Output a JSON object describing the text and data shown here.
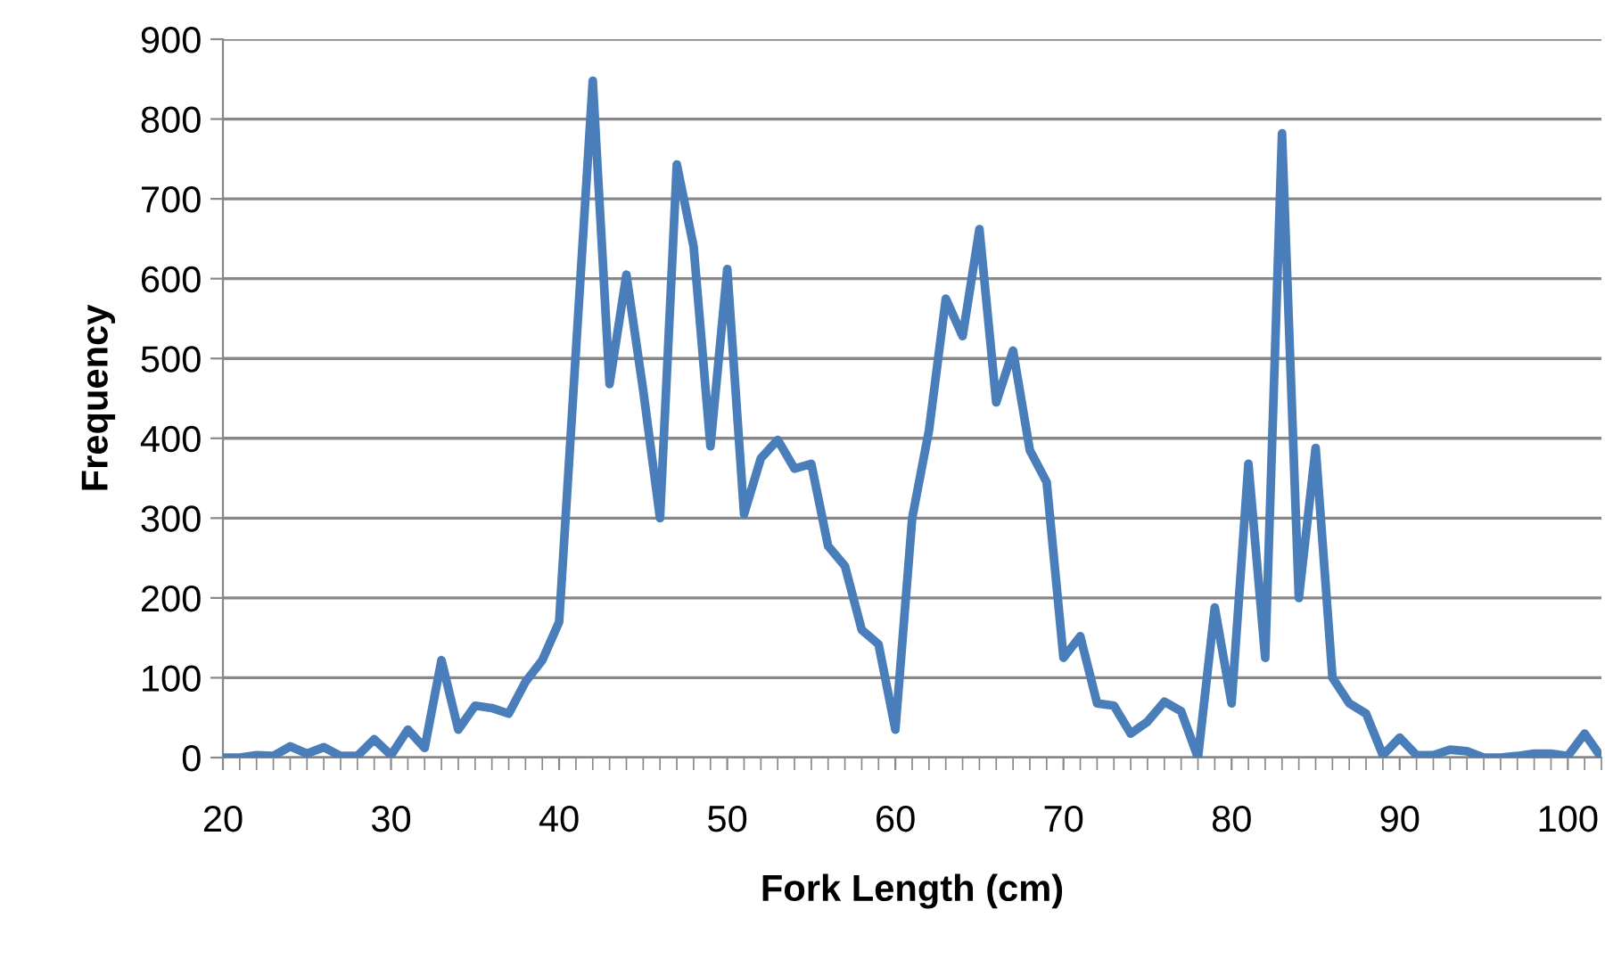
{
  "chart_data": {
    "type": "line",
    "xlabel": "Fork Length (cm)",
    "ylabel": "Frequency",
    "x": [
      20,
      21,
      22,
      23,
      24,
      25,
      26,
      27,
      28,
      29,
      30,
      31,
      32,
      33,
      34,
      35,
      36,
      37,
      38,
      39,
      40,
      41,
      42,
      43,
      44,
      45,
      46,
      47,
      48,
      49,
      50,
      51,
      52,
      53,
      54,
      55,
      56,
      57,
      58,
      59,
      60,
      61,
      62,
      63,
      64,
      65,
      66,
      67,
      68,
      69,
      70,
      71,
      72,
      73,
      74,
      75,
      76,
      77,
      78,
      79,
      80,
      81,
      82,
      83,
      84,
      85,
      86,
      87,
      88,
      89,
      90,
      91,
      92,
      93,
      94,
      95,
      96,
      97,
      98,
      99,
      100,
      101,
      102
    ],
    "series": [
      {
        "color": "#4a7ebb",
        "values": [
          0,
          0,
          3,
          2,
          14,
          5,
          13,
          2,
          2,
          23,
          3,
          35,
          12,
          122,
          35,
          65,
          62,
          55,
          95,
          122,
          170,
          510,
          848,
          468,
          605,
          460,
          300,
          743,
          640,
          390,
          612,
          305,
          375,
          398,
          362,
          368,
          265,
          240,
          160,
          142,
          35,
          300,
          410,
          575,
          528,
          662,
          445,
          510,
          385,
          345,
          125,
          152,
          68,
          65,
          30,
          45,
          70,
          58,
          0,
          188,
          68,
          368,
          125,
          782,
          200,
          388,
          100,
          68,
          55,
          3,
          25,
          3,
          3,
          10,
          8,
          0,
          0,
          2,
          5,
          5,
          2,
          30,
          0
        ]
      }
    ],
    "xlim": [
      20,
      102
    ],
    "xticks": [
      20,
      30,
      40,
      50,
      60,
      70,
      80,
      90,
      100
    ],
    "ylim": [
      0,
      900
    ],
    "yticks": [
      0,
      100,
      200,
      300,
      400,
      500,
      600,
      700,
      800,
      900
    ],
    "grid": "y",
    "legend": false,
    "marker": "none",
    "line_style": "solid"
  }
}
